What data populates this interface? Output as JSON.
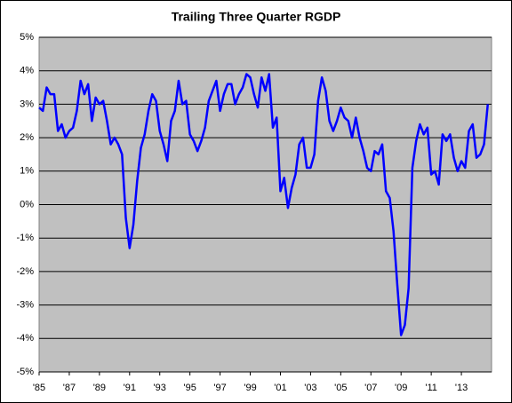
{
  "chart_data": {
    "type": "line",
    "title": "Trailing Three Quarter RGDP",
    "categories": [
      "'85",
      null,
      null,
      null,
      null,
      null,
      null,
      null,
      "'87",
      null,
      null,
      null,
      null,
      null,
      null,
      null,
      "'89",
      null,
      null,
      null,
      null,
      null,
      null,
      null,
      "'91",
      null,
      null,
      null,
      null,
      null,
      null,
      null,
      "'93",
      null,
      null,
      null,
      null,
      null,
      null,
      null,
      "'95",
      null,
      null,
      null,
      null,
      null,
      null,
      null,
      "'97",
      null,
      null,
      null,
      null,
      null,
      null,
      null,
      "'99",
      null,
      null,
      null,
      null,
      null,
      null,
      null,
      "'01",
      null,
      null,
      null,
      null,
      null,
      null,
      null,
      "'03",
      null,
      null,
      null,
      null,
      null,
      null,
      null,
      "'05",
      null,
      null,
      null,
      null,
      null,
      null,
      null,
      "'07",
      null,
      null,
      null,
      null,
      null,
      null,
      null,
      "'09",
      null,
      null,
      null,
      null,
      null,
      null,
      null,
      "'11",
      null,
      null,
      null,
      null,
      null,
      null,
      null,
      "'13",
      null,
      null,
      null,
      null,
      null,
      null,
      null
    ],
    "series": [
      {
        "color": "#0000ff",
        "values": [
          2.9,
          2.8,
          3.5,
          3.3,
          3.3,
          2.2,
          2.4,
          2.0,
          2.2,
          2.3,
          2.8,
          3.7,
          3.3,
          3.6,
          2.5,
          3.2,
          3.0,
          3.1,
          2.5,
          1.8,
          2.0,
          1.8,
          1.5,
          -0.4,
          -1.3,
          -0.6,
          0.7,
          1.7,
          2.1,
          2.8,
          3.3,
          3.1,
          2.2,
          1.8,
          1.3,
          2.5,
          2.8,
          3.7,
          3.0,
          3.1,
          2.1,
          1.9,
          1.6,
          1.9,
          2.3,
          3.1,
          3.4,
          3.7,
          2.8,
          3.3,
          3.6,
          3.6,
          3.0,
          3.3,
          3.5,
          3.9,
          3.8,
          3.3,
          2.9,
          3.8,
          3.4,
          3.9,
          2.3,
          2.6,
          0.4,
          0.8,
          -0.1,
          0.5,
          0.9,
          1.8,
          2.0,
          1.1,
          1.1,
          1.5,
          3.1,
          3.8,
          3.4,
          2.5,
          2.2,
          2.5,
          2.9,
          2.6,
          2.5,
          2.0,
          2.6,
          2.0,
          1.6,
          1.1,
          1.0,
          1.6,
          1.5,
          1.8,
          0.4,
          0.2,
          -0.8,
          -2.4,
          -3.9,
          -3.6,
          -2.5,
          1.1,
          1.9,
          2.4,
          2.1,
          2.3,
          0.9,
          1.0,
          0.6,
          2.1,
          1.9,
          2.1,
          1.4,
          1.0,
          1.3,
          1.1,
          2.2,
          2.4,
          1.4,
          1.5,
          1.8,
          3.0
        ]
      }
    ],
    "ylim": [
      -5,
      5
    ],
    "yticks": [
      {
        "value": -5,
        "label": "-5%"
      },
      {
        "value": -4,
        "label": "-4%"
      },
      {
        "value": -3,
        "label": "-3%"
      },
      {
        "value": -2,
        "label": "-2%"
      },
      {
        "value": -1,
        "label": "-1%"
      },
      {
        "value": 0,
        "label": "0%"
      },
      {
        "value": 1,
        "label": "1%"
      },
      {
        "value": 2,
        "label": "2%"
      },
      {
        "value": 3,
        "label": "3%"
      },
      {
        "value": 4,
        "label": "4%"
      },
      {
        "value": 5,
        "label": "5%"
      }
    ],
    "grid": true
  }
}
